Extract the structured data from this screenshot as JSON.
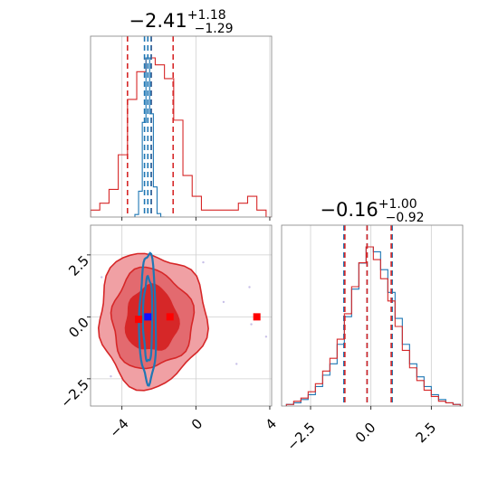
{
  "figure": {
    "kind": "corner-plot"
  },
  "colors": {
    "blue": "#1f77b4",
    "red": "#d62728",
    "red_fill_light": "#f0a0a4",
    "red_fill_dark": "#d62728",
    "grid": "#cfcfcf",
    "axis": "#808080",
    "scatter_points": "#c8c0e8"
  },
  "chart_data": [
    {
      "type": "area",
      "panel": "marginal-param-1",
      "title_main": "−2.41",
      "title_sup": "+1.18",
      "title_sub": "−1.29",
      "xlim": [
        -5.7,
        4.1
      ],
      "xticks": [
        -4,
        0,
        4
      ],
      "tick_labels_shown": false,
      "grid": true,
      "series": [
        {
          "color": "#d62728",
          "kind": "step-histogram",
          "x": [
            -5.7,
            -5.2,
            -4.7,
            -4.2,
            -3.7,
            -3.2,
            -2.7,
            -2.2,
            -1.7,
            -1.2,
            -0.7,
            -0.2,
            0.3,
            0.8,
            1.3,
            1.8,
            2.3,
            2.8,
            3.3,
            3.8
          ],
          "values": [
            1,
            2,
            4,
            9,
            17,
            21,
            23,
            22,
            20,
            14,
            6,
            3,
            1,
            1,
            1,
            1,
            2,
            3,
            1,
            0
          ],
          "quantile_lines": [
            -3.7,
            -2.41,
            -1.23
          ]
        },
        {
          "color": "#1f77b4",
          "kind": "step-histogram",
          "x": [
            -3.3,
            -3.1,
            -2.9,
            -2.7,
            -2.5,
            -2.3,
            -2.1,
            -1.9
          ],
          "values": [
            3,
            30,
            110,
            185,
            120,
            35,
            4,
            0
          ],
          "quantile_lines": [
            -2.78,
            -2.6,
            -2.42
          ]
        }
      ]
    },
    {
      "type": "scatter",
      "panel": "joint-param-1-param-2",
      "xlim": [
        -5.7,
        4.1
      ],
      "ylim": [
        -3.6,
        3.7
      ],
      "xticks": [
        -4,
        0,
        4
      ],
      "yticks": [
        -2.5,
        0.0,
        2.5
      ],
      "xtick_labels": [
        "−4",
        "0",
        "4"
      ],
      "ytick_labels": [
        "−2.5",
        "0.0",
        "2.5"
      ],
      "grid": true,
      "contours": [
        {
          "color": "#d62728",
          "level": "outer",
          "center": [
            -2.4,
            -0.1
          ],
          "rx": 2.9,
          "ry": 2.7
        },
        {
          "color": "#d62728",
          "level": "middle",
          "center": [
            -2.4,
            -0.1
          ],
          "rx": 2.2,
          "ry": 2.0
        },
        {
          "color": "#d62728",
          "level": "inner",
          "center": [
            -2.4,
            -0.1
          ],
          "rx": 1.4,
          "ry": 1.3
        },
        {
          "color": "#1f77b4",
          "level": "outer",
          "center": [
            -2.6,
            -0.1
          ],
          "rx": 0.45,
          "ry": 2.6
        },
        {
          "color": "#1f77b4",
          "level": "inner",
          "center": [
            -2.6,
            -0.1
          ],
          "rx": 0.25,
          "ry": 1.7
        }
      ],
      "markers": [
        {
          "color": "#d62728",
          "x": -3.1,
          "y": -0.1
        },
        {
          "color": "#d62728",
          "x": -1.4,
          "y": 0.0
        },
        {
          "color": "#d62728",
          "x": 3.3,
          "y": 0.0
        },
        {
          "color": "#1f77b4",
          "x": -2.6,
          "y": 0.0
        }
      ],
      "stray_points": [
        {
          "x": 3.8,
          "y": -0.8
        },
        {
          "x": 2.9,
          "y": 1.2
        },
        {
          "x": 1.5,
          "y": 0.6
        },
        {
          "x": 2.2,
          "y": -1.9
        },
        {
          "x": -5.1,
          "y": 1.6
        },
        {
          "x": -4.6,
          "y": -2.4
        },
        {
          "x": 0.4,
          "y": 2.2
        },
        {
          "x": 3.0,
          "y": -0.3
        }
      ]
    },
    {
      "type": "area",
      "panel": "marginal-param-2",
      "title_main": "−0.16",
      "title_sup": "+1.00",
      "title_sub": "−0.92",
      "xlim": [
        -3.7,
        3.8
      ],
      "xticks": [
        -2.5,
        0.0,
        2.5
      ],
      "xtick_labels": [
        "−2.5",
        "0.0",
        "2.5"
      ],
      "grid": true,
      "series": [
        {
          "color": "#1f77b4",
          "kind": "step-histogram",
          "x": [
            -3.5,
            -3.2,
            -2.9,
            -2.6,
            -2.3,
            -2.0,
            -1.7,
            -1.4,
            -1.1,
            -0.8,
            -0.5,
            -0.2,
            0.1,
            0.4,
            0.7,
            1.0,
            1.3,
            1.6,
            1.9,
            2.2,
            2.5,
            2.8,
            3.1,
            3.4
          ],
          "values": [
            1,
            2,
            4,
            7,
            12,
            19,
            26,
            38,
            55,
            72,
            88,
            98,
            95,
            84,
            70,
            54,
            38,
            26,
            18,
            12,
            7,
            4,
            2,
            1
          ],
          "quantile_lines": [
            -1.12,
            -0.16,
            0.88
          ]
        },
        {
          "color": "#d62728",
          "kind": "step-histogram",
          "x": [
            -3.5,
            -3.2,
            -2.9,
            -2.6,
            -2.3,
            -2.0,
            -1.7,
            -1.4,
            -1.1,
            -0.8,
            -0.5,
            -0.2,
            0.1,
            0.4,
            0.7,
            1.0,
            1.3,
            1.6,
            1.9,
            2.2,
            2.5,
            2.8,
            3.1,
            3.4
          ],
          "values": [
            1,
            3,
            5,
            9,
            14,
            22,
            30,
            42,
            58,
            75,
            90,
            100,
            92,
            80,
            66,
            50,
            35,
            24,
            16,
            10,
            6,
            3,
            2,
            1
          ],
          "quantile_lines": [
            -1.08,
            -0.16,
            0.84
          ]
        }
      ]
    }
  ]
}
